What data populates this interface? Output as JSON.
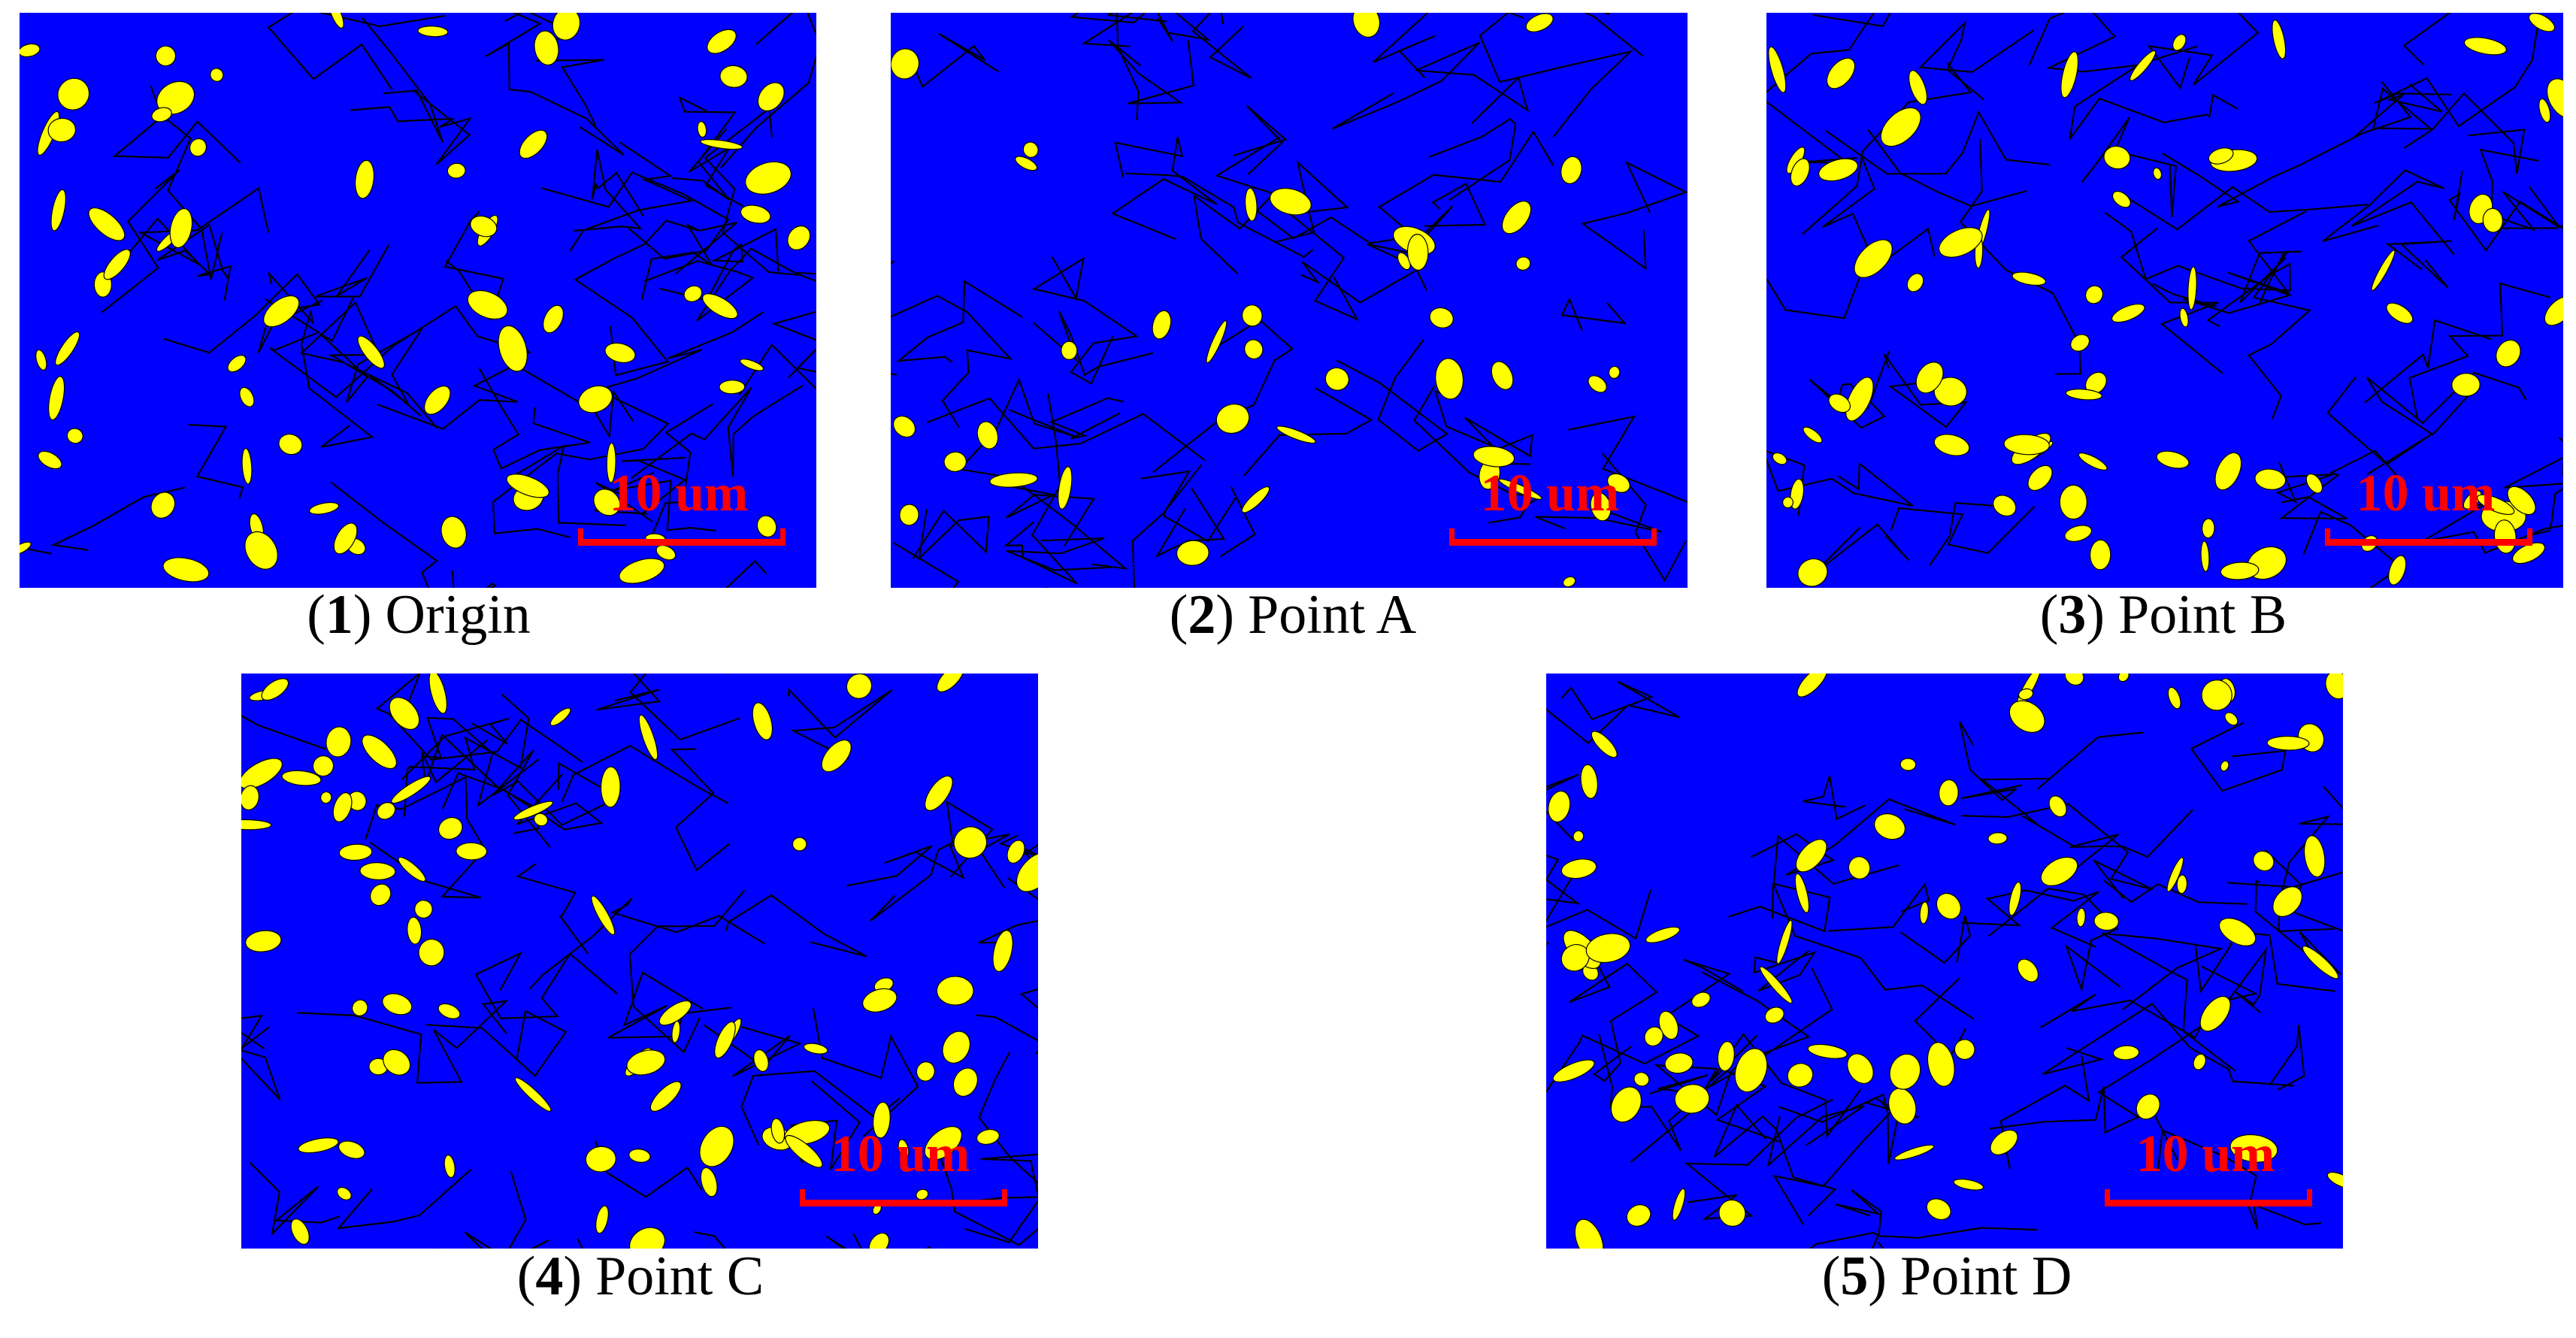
{
  "panels": [
    {
      "caption": {
        "open": "(",
        "number": "1",
        "close": ")",
        "label": "Origin"
      },
      "scale_bar": "10 um"
    },
    {
      "caption": {
        "open": "(",
        "number": "2",
        "close": ")",
        "label": "Point A"
      },
      "scale_bar": "10 um"
    },
    {
      "caption": {
        "open": "(",
        "number": "3",
        "close": ")",
        "label": "Point B"
      },
      "scale_bar": "10 um"
    },
    {
      "caption": {
        "open": "(",
        "number": "4",
        "close": ")",
        "label": "Point C"
      },
      "scale_bar": "10 um"
    },
    {
      "caption": {
        "open": "(",
        "number": "5",
        "close": ")",
        "label": "Point D"
      },
      "scale_bar": "10 um"
    }
  ]
}
